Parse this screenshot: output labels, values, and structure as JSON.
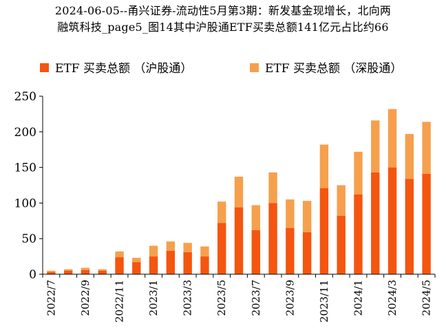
{
  "title": {
    "line1": "2024-06-05--甬兴证券-流动性5月第3期：新发基金现增长，北向两",
    "line2": "融筑科技_page5_图14其中沪股通ETF买卖总额141亿元占比约66"
  },
  "colors": {
    "sh": "#F4550F",
    "sz": "#F6A04D",
    "axis": "#000000"
  },
  "chart_data": {
    "type": "bar",
    "stacked": true,
    "title": "",
    "xlabel": "",
    "ylabel": "",
    "ylim": [
      0,
      250
    ],
    "yticks": [
      0,
      50,
      100,
      150,
      200,
      250
    ],
    "grid": false,
    "legend_position": "top",
    "categories": [
      "2022/7",
      "2022/8",
      "2022/9",
      "2022/10",
      "2022/11",
      "2022/12",
      "2023/1",
      "2023/2",
      "2023/3",
      "2023/4",
      "2023/5",
      "2023/6",
      "2023/7",
      "2023/8",
      "2023/9",
      "2023/10",
      "2023/11",
      "2023/12",
      "2024/1",
      "2024/2",
      "2024/3",
      "2024/4",
      "2024/5"
    ],
    "xtick_labels": [
      "2022/7",
      "",
      "2022/9",
      "",
      "2022/11",
      "",
      "2023/1",
      "",
      "2023/3",
      "",
      "2023/5",
      "",
      "2023/7",
      "",
      "2023/9",
      "",
      "2023/11",
      "",
      "2024/1",
      "",
      "2024/3",
      "",
      "2024/5"
    ],
    "series": [
      {
        "name": "ETF 买卖总额 （沪股通）",
        "values": [
          3,
          5,
          6,
          5,
          24,
          17,
          25,
          33,
          31,
          25,
          72,
          94,
          62,
          100,
          65,
          59,
          121,
          82,
          112,
          143,
          150,
          134,
          141
        ]
      },
      {
        "name": "ETF 买卖总额 （深股通）",
        "values": [
          2,
          2,
          3,
          2,
          8,
          6,
          15,
          13,
          13,
          14,
          30,
          43,
          35,
          43,
          40,
          44,
          61,
          43,
          60,
          73,
          82,
          63,
          73
        ]
      }
    ]
  }
}
